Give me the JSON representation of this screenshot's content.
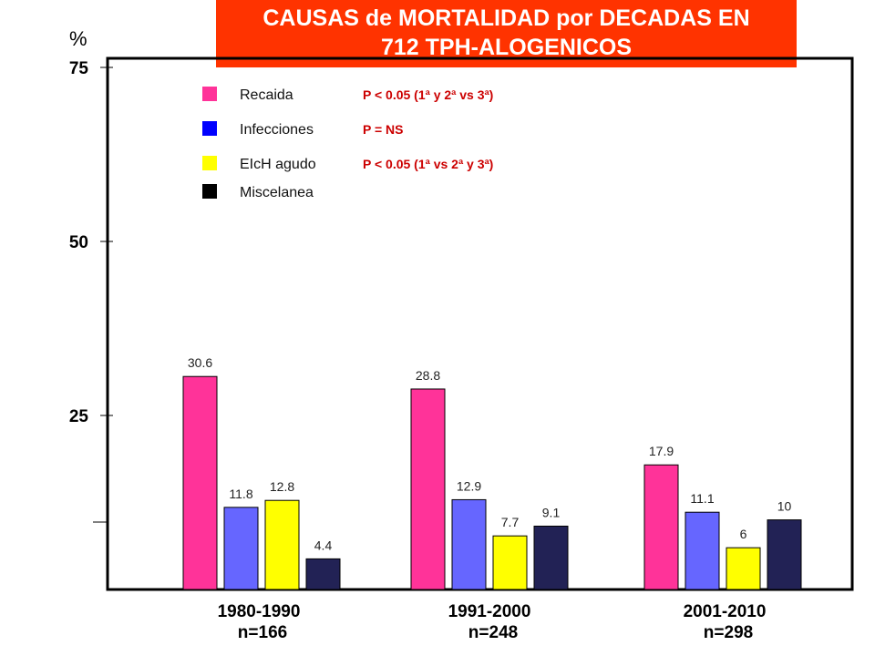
{
  "chart_data": {
    "type": "bar",
    "title_lines": [
      "CAUSAS de MORTALIDAD  por  DECADAS EN",
      "712 TPH-ALOGENICOS"
    ],
    "ylabel": "%",
    "ylim": [
      0,
      75
    ],
    "yticks": [
      0,
      25,
      50,
      75
    ],
    "ytick_labels": [
      "",
      "25",
      "50",
      "75"
    ],
    "categories": [
      "1980-1990",
      "1991-2000",
      "2001-2010"
    ],
    "category_sublabels": [
      "n=166",
      "n=248",
      "n=298"
    ],
    "series": [
      {
        "name": "Recaida",
        "color": "#ff3399",
        "values": [
          30.6,
          28.8,
          17.9
        ],
        "labels": [
          "30.6",
          "28.8",
          "17.9"
        ]
      },
      {
        "name": "Infecciones",
        "color": "#6666ff",
        "values": [
          11.8,
          12.9,
          11.1
        ],
        "labels": [
          "11.8",
          "12.9",
          "11.1"
        ]
      },
      {
        "name": "EIcH agudo",
        "color": "#ffff00",
        "values": [
          12.8,
          7.7,
          6
        ],
        "labels": [
          "12.8",
          "7.7",
          "6"
        ]
      },
      {
        "name": "Miscelanea",
        "color": "#222255",
        "values": [
          4.4,
          9.1,
          10
        ],
        "labels": [
          "4.4",
          "9.1",
          "10"
        ]
      }
    ],
    "legend": {
      "placement": "top-left",
      "swatch_colors": [
        "#ff3399",
        "#0000ff",
        "#ffff00",
        "#000000"
      ],
      "stats": [
        "P < 0.05 (1ª y 2ª vs 3ª)",
        "P = NS",
        "P < 0.05 (1ª vs 2ª y 3ª)",
        ""
      ]
    },
    "grid": false
  }
}
